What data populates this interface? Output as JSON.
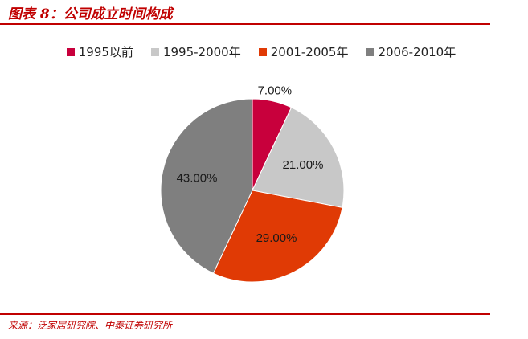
{
  "header": {
    "title": "图表 8：公司成立时间构成"
  },
  "footer": {
    "source": "来源：泛家居研究院、中泰证券研究所"
  },
  "chart_data": {
    "type": "pie",
    "title": "",
    "categories": [
      "1995以前",
      "1995-2000年",
      "2001-2005年",
      "2006-2010年"
    ],
    "values": [
      7.0,
      21.0,
      29.0,
      43.0
    ],
    "labels": [
      "7.00%",
      "21.00%",
      "29.00%",
      "43.00%"
    ],
    "colors": [
      "#c8003c",
      "#c8c8c8",
      "#e03a05",
      "#7f7f7f"
    ],
    "legend_position": "top",
    "start_angle": "12 o'clock, clockwise"
  }
}
